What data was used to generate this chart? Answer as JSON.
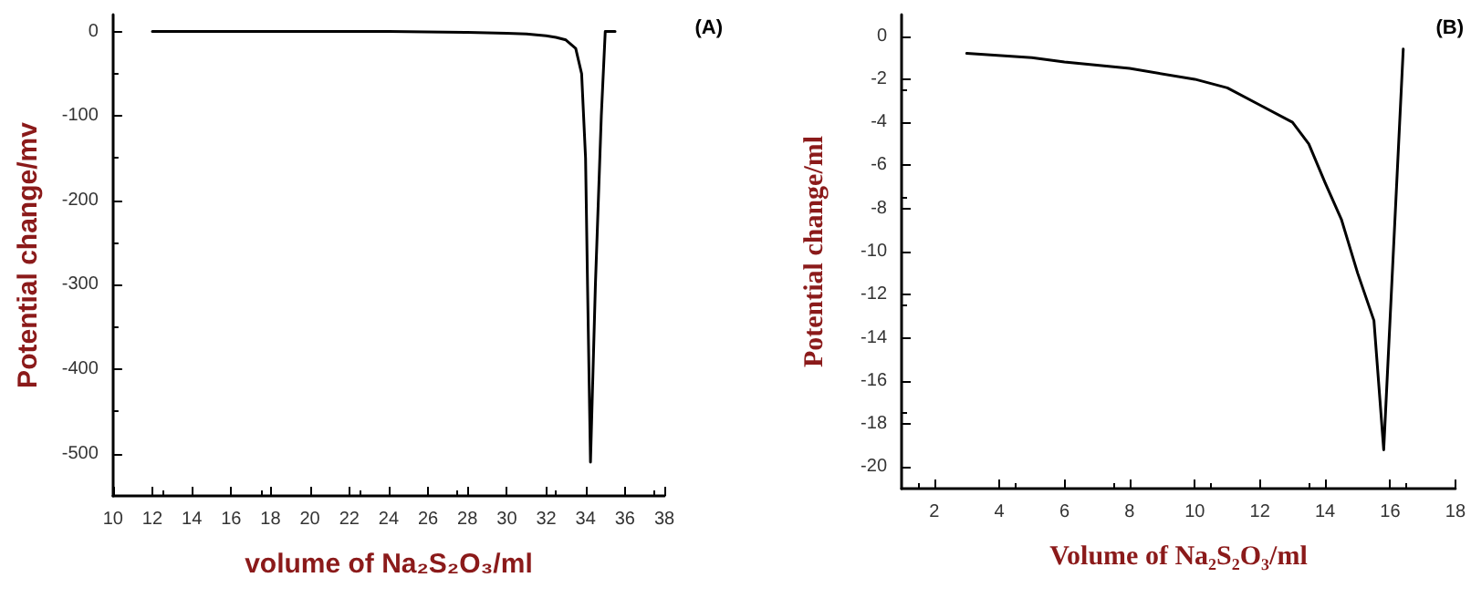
{
  "chart_data": [
    {
      "type": "line",
      "xlabel": "volume of Na₂S₂O₃/ml",
      "ylabel": "Potential change/mv",
      "annotations": [
        "(A)"
      ],
      "xlim": [
        10,
        38
      ],
      "xticks": [
        10,
        12,
        14,
        16,
        18,
        20,
        22,
        24,
        26,
        28,
        30,
        32,
        34,
        36,
        38
      ],
      "ylim": [
        -550,
        20
      ],
      "yticks": [
        0,
        -100,
        -200,
        -300,
        -400,
        -500
      ],
      "grid": false,
      "marker": "none",
      "line_style": "solid",
      "series": [
        {
          "color": "#000000",
          "x": [
            12,
            16,
            20,
            24,
            28,
            30,
            31,
            32,
            32.5,
            33,
            33.5,
            33.8,
            34,
            34.1,
            34.25,
            34.5,
            34.8,
            35,
            35.5
          ],
          "values": [
            0,
            0,
            0,
            0,
            -1,
            -2,
            -3,
            -5,
            -7,
            -10,
            -20,
            -50,
            -150,
            -300,
            -510,
            -300,
            -100,
            0,
            0
          ]
        }
      ]
    },
    {
      "type": "line",
      "xlabel": "Volume of Na₂S₂O₃/ml",
      "ylabel": "Potential change/ml",
      "annotations": [
        "(B)"
      ],
      "xlim": [
        1,
        18
      ],
      "xticks": [
        2,
        4,
        6,
        8,
        10,
        12,
        14,
        16,
        18
      ],
      "ylim": [
        -21,
        1
      ],
      "yticks": [
        0,
        -2,
        -4,
        -6,
        -8,
        -10,
        -12,
        -14,
        -16,
        -18,
        -20
      ],
      "grid": false,
      "marker": "none",
      "line_style": "solid",
      "series": [
        {
          "color": "#000000",
          "x": [
            3,
            5,
            6,
            8,
            10,
            11,
            12,
            13,
            13.5,
            14,
            14.5,
            15,
            15.5,
            15.8,
            16.4
          ],
          "values": [
            -0.8,
            -1,
            -1.2,
            -1.5,
            -2,
            -2.4,
            -3.2,
            -4,
            -5,
            -6.8,
            -8.5,
            -11,
            -13.2,
            -19.2,
            -0.6
          ]
        }
      ]
    }
  ]
}
